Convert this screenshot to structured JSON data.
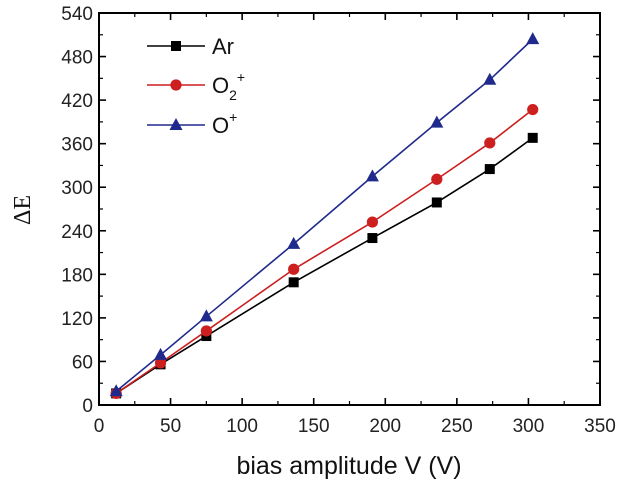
{
  "chart_data": {
    "type": "line",
    "xlabel": "bias amplitude V (V)",
    "ylabel": "ΔE",
    "xlim": [
      0,
      350
    ],
    "ylim": [
      0,
      540
    ],
    "xticks": [
      0,
      50,
      100,
      150,
      200,
      250,
      300,
      350
    ],
    "yticks": [
      0,
      60,
      120,
      180,
      240,
      300,
      360,
      420,
      480,
      540
    ],
    "grid": false,
    "legend_position": "top-left",
    "series": [
      {
        "key": "ar",
        "name": "Ar",
        "color": "#000000",
        "marker": "square",
        "x": [
          12,
          43,
          75,
          136,
          191,
          236,
          273,
          303
        ],
        "y": [
          16,
          56,
          95,
          169,
          230,
          279,
          325,
          368
        ]
      },
      {
        "key": "o2",
        "name": "O2+",
        "label_base": "O",
        "label_sub": "2",
        "label_sup": "+",
        "color": "#cc1f1f",
        "marker": "circle",
        "x": [
          12,
          43,
          75,
          136,
          191,
          236,
          273,
          303
        ],
        "y": [
          16,
          58,
          102,
          187,
          252,
          311,
          361,
          407
        ]
      },
      {
        "key": "oplus",
        "name": "O+",
        "label_base": "O",
        "label_sup": "+",
        "color": "#1f2a8c",
        "marker": "triangle",
        "x": [
          12,
          43,
          75,
          136,
          191,
          236,
          273,
          303
        ],
        "y": [
          19,
          69,
          122,
          222,
          315,
          389,
          448,
          504
        ]
      }
    ]
  }
}
